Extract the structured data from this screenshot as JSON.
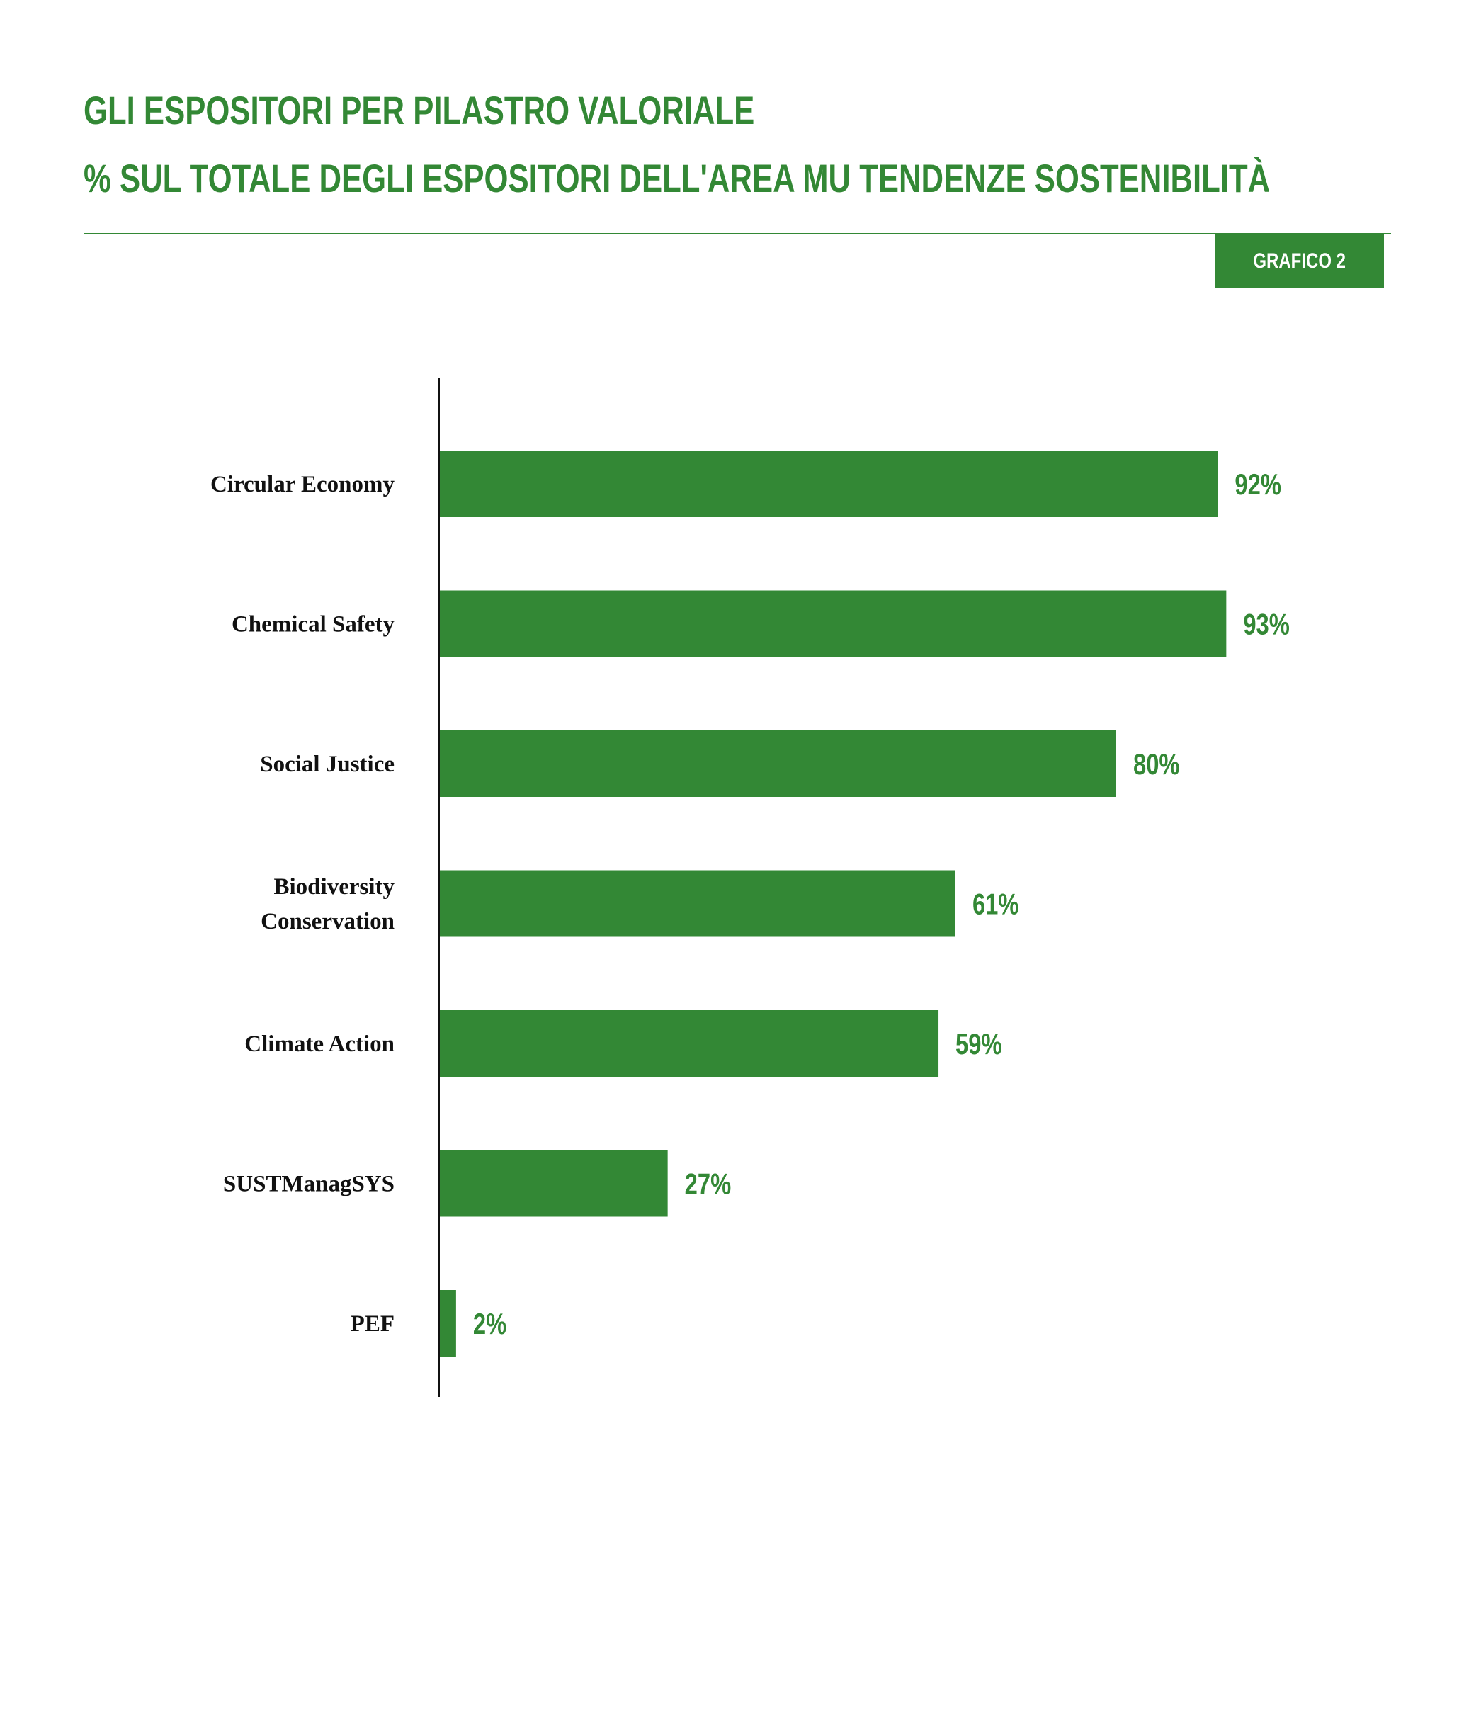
{
  "header": {
    "title_line1": "GLI ESPOSITORI PER PILASTRO VALORIALE",
    "title_line2": "% SUL TOTALE DEGLI ESPOSITORI DELL'AREA MU TENDENZE SOSTENIBILITÀ",
    "badge": "GRAFICO 2"
  },
  "colors": {
    "accent": "#338835",
    "axis": "#111111",
    "text": "#111111"
  },
  "chart_data": {
    "type": "bar",
    "orientation": "horizontal",
    "categories": [
      [
        "Circular Economy"
      ],
      [
        "Chemical Safety"
      ],
      [
        "Social Justice"
      ],
      [
        "Biodiversity",
        "Conservation"
      ],
      [
        "Climate Action"
      ],
      [
        "SUSTManagSYS"
      ],
      [
        "PEF"
      ]
    ],
    "values": [
      92,
      93,
      80,
      61,
      59,
      27,
      2
    ],
    "value_labels": [
      "92%",
      "93%",
      "80%",
      "61%",
      "59%",
      "27%",
      "2%"
    ],
    "unit": "%",
    "xlim": [
      0,
      100
    ],
    "grid": false,
    "legend": "none"
  }
}
